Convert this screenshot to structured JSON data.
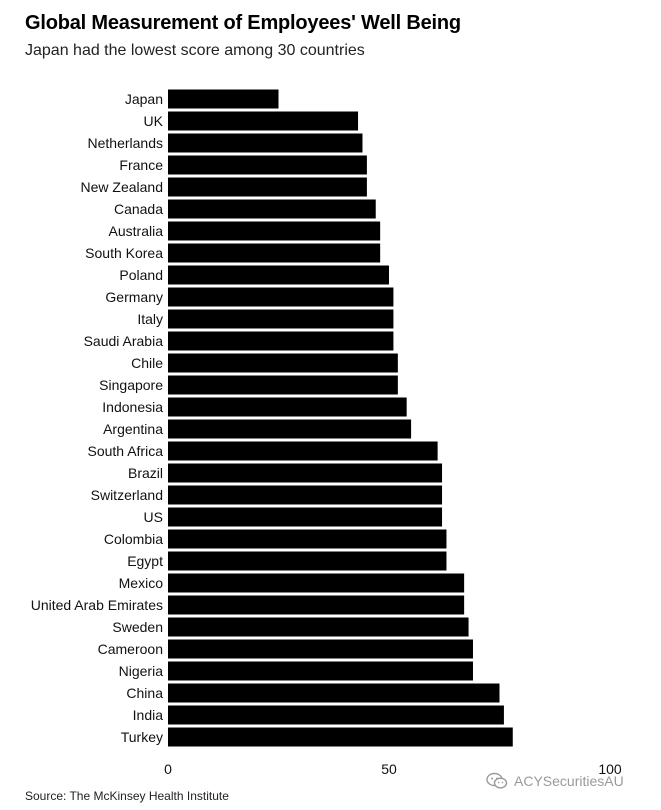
{
  "title": "Global Measurement of Employees' Well Being",
  "subtitle": "Japan had the lowest score among 30 countries",
  "source": "Source: The McKinsey Health Institute",
  "watermark": "ACYSecuritiesAU",
  "colors": {
    "bar": "#000000",
    "text": "#111111",
    "watermark": "#9a9a9a"
  },
  "chart_data": {
    "type": "bar",
    "orientation": "horizontal",
    "title": "Global Measurement of Employees' Well Being",
    "subtitle": "Japan had the lowest score among 30 countries",
    "xlabel": "",
    "ylabel": "",
    "xlim": [
      0,
      100
    ],
    "xticks": [
      0,
      50,
      100
    ],
    "grid": false,
    "legend": "none",
    "categories": [
      "Japan",
      "UK",
      "Netherlands",
      "France",
      "New Zealand",
      "Canada",
      "Australia",
      "South Korea",
      "Poland",
      "Germany",
      "Italy",
      "Saudi Arabia",
      "Chile",
      "Singapore",
      "Indonesia",
      "Argentina",
      "South Africa",
      "Brazil",
      "Switzerland",
      "US",
      "Colombia",
      "Egypt",
      "Mexico",
      "United Arab Emirates",
      "Sweden",
      "Cameroon",
      "Nigeria",
      "China",
      "India",
      "Turkey"
    ],
    "values": [
      25,
      43,
      44,
      45,
      45,
      47,
      48,
      48,
      50,
      51,
      51,
      51,
      52,
      52,
      54,
      55,
      61,
      62,
      62,
      62,
      63,
      63,
      67,
      67,
      68,
      69,
      69,
      75,
      76,
      78
    ]
  }
}
